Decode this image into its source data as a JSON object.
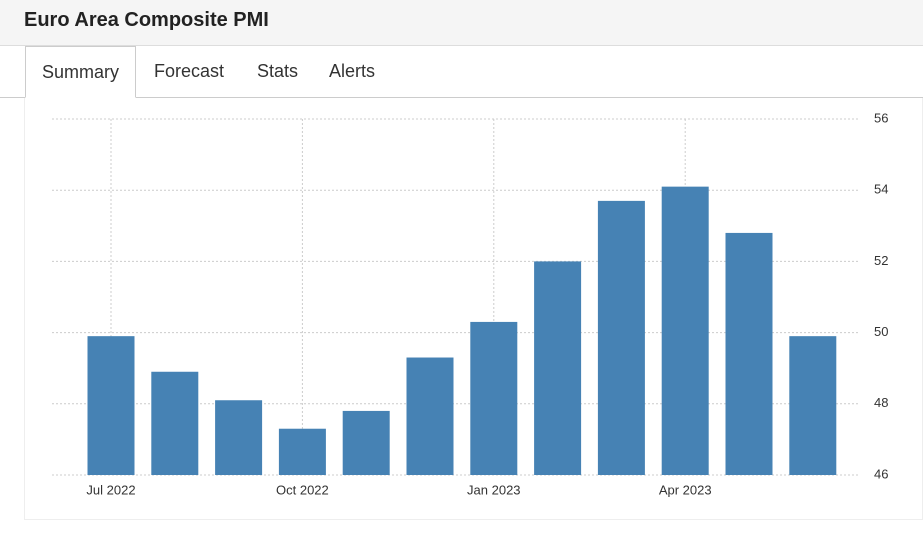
{
  "header": {
    "title": "Euro Area Composite PMI"
  },
  "tabs": [
    "Summary",
    "Forecast",
    "Stats",
    "Alerts"
  ],
  "chart_data": {
    "type": "bar",
    "categories": [
      "Jul 2022",
      null,
      null,
      "Oct 2022",
      null,
      null,
      "Jan 2023",
      null,
      null,
      "Apr 2023",
      null,
      null
    ],
    "values": [
      49.9,
      48.9,
      48.1,
      47.3,
      47.8,
      49.3,
      50.3,
      52.0,
      53.7,
      54.1,
      52.8,
      49.9
    ],
    "color": "#4682b4",
    "ylim": [
      46,
      56
    ],
    "yticks": [
      46,
      48,
      50,
      52,
      54,
      56
    ],
    "grid": true
  }
}
